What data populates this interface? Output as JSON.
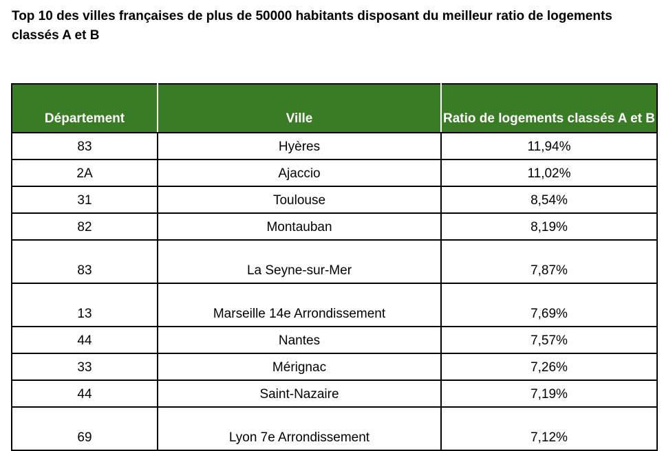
{
  "title": "Top 10 des villes françaises de plus de 50000 habitants disposant du meilleur ratio de logements classés A et B",
  "table": {
    "headers": [
      "Département",
      "Ville",
      "Ratio de logements classés A et B"
    ],
    "rows": [
      {
        "departement": "83",
        "ville": "Hyères",
        "ratio": "11,94%"
      },
      {
        "departement": "2A",
        "ville": "Ajaccio",
        "ratio": "11,02%"
      },
      {
        "departement": "31",
        "ville": "Toulouse",
        "ratio": "8,54%"
      },
      {
        "departement": "82",
        "ville": "Montauban",
        "ratio": "8,19%"
      },
      {
        "departement": "83",
        "ville": "La Seyne-sur-Mer",
        "ratio": "7,87%"
      },
      {
        "departement": "13",
        "ville": "Marseille 14e Arrondissement",
        "ratio": "7,69%"
      },
      {
        "departement": "44",
        "ville": "Nantes",
        "ratio": "7,57%"
      },
      {
        "departement": "33",
        "ville": "Mérignac",
        "ratio": "7,26%"
      },
      {
        "departement": "44",
        "ville": "Saint-Nazaire",
        "ratio": "7,19%"
      },
      {
        "departement": "69",
        "ville": "Lyon 7e Arrondissement",
        "ratio": "7,12%"
      }
    ]
  },
  "colors": {
    "header_background": "#3a7c25",
    "header_text": "#ffffff",
    "border": "#000000"
  }
}
